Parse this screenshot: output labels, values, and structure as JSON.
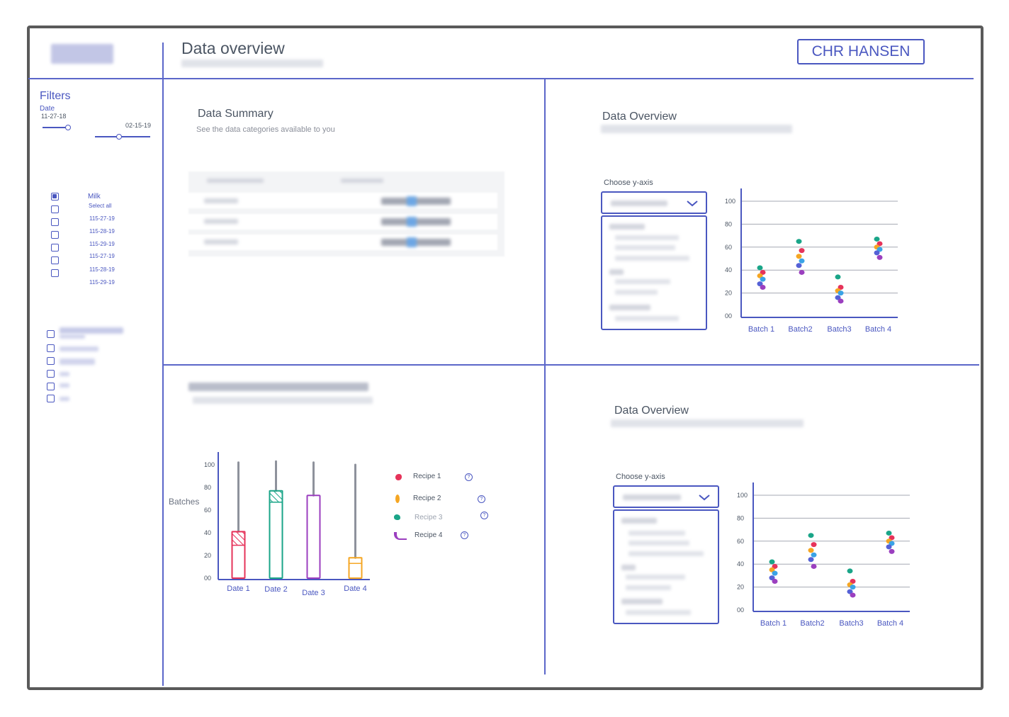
{
  "header": {
    "page_title": "Data overview",
    "brand_button": "CHR HANSEN"
  },
  "filters": {
    "title": "Filters",
    "date_label": "Date",
    "date_start": "11-27-18",
    "date_end": "02-15-19",
    "milk_label": "Milk",
    "select_all": "Select all",
    "items": [
      "115-27-19",
      "115-28-19",
      "115-29-19",
      "115-27-19",
      "115-28-19",
      "115-29-19"
    ]
  },
  "summary": {
    "title": "Data Summary",
    "subtitle": "See the data categories available to you"
  },
  "overview_top": {
    "title": "Data Overview",
    "choose_label": "Choose y-axis"
  },
  "overview_bottom": {
    "title": "Data Overview",
    "choose_label": "Choose y-axis"
  },
  "batch_chart": {
    "ylabel": "Batches",
    "legend": [
      "Recipe 1",
      "Recipe 2",
      "Recipe 3",
      "Recipe 4"
    ]
  },
  "colors": {
    "accent": "#4a57c0",
    "recipe1": "#e6335a",
    "recipe2": "#f5a623",
    "recipe3": "#1aa588",
    "recipe4": "#9b3fbf"
  },
  "chart_data": [
    {
      "type": "scatter",
      "categories": [
        "Batch 1",
        "Batch2",
        "Batch3",
        "Batch 4"
      ],
      "y_ticks": [
        "100",
        "80",
        "60",
        "40",
        "20",
        "00"
      ],
      "ylim": [
        0,
        100
      ],
      "grid": true,
      "points_per_batch": [
        [
          42,
          38,
          35,
          32,
          28,
          25
        ],
        [
          65,
          57,
          52,
          48,
          44,
          38
        ],
        [
          34,
          25,
          22,
          20,
          16,
          13
        ],
        [
          67,
          63,
          60,
          58,
          55,
          51
        ]
      ]
    },
    {
      "type": "scatter",
      "categories": [
        "Batch 1",
        "Batch2",
        "Batch3",
        "Batch 4"
      ],
      "y_ticks": [
        "100",
        "80",
        "60",
        "40",
        "20",
        "00"
      ],
      "ylim": [
        0,
        100
      ],
      "grid": true,
      "points_per_batch": [
        [
          42,
          38,
          35,
          32,
          28,
          25
        ],
        [
          65,
          57,
          52,
          48,
          44,
          38
        ],
        [
          34,
          25,
          22,
          20,
          16,
          13
        ],
        [
          67,
          63,
          60,
          58,
          55,
          51
        ]
      ]
    },
    {
      "type": "bar",
      "categories": [
        "Date 1",
        "Date 2",
        "Date 3",
        "Date 4"
      ],
      "y_ticks": [
        "100",
        "80",
        "60",
        "40",
        "20",
        "00"
      ],
      "ylim": [
        0,
        100
      ],
      "ylabel": "Batches",
      "values": [
        41,
        77,
        73,
        18
      ],
      "range_max": [
        102,
        103,
        102,
        100
      ],
      "hatch_top": [
        [
          29,
          41
        ],
        [
          67,
          77
        ],
        null,
        [
          13,
          18
        ]
      ],
      "colors": [
        "#e6335a",
        "#1aa588",
        "#9b3fbf",
        "#f5a623"
      ]
    }
  ]
}
